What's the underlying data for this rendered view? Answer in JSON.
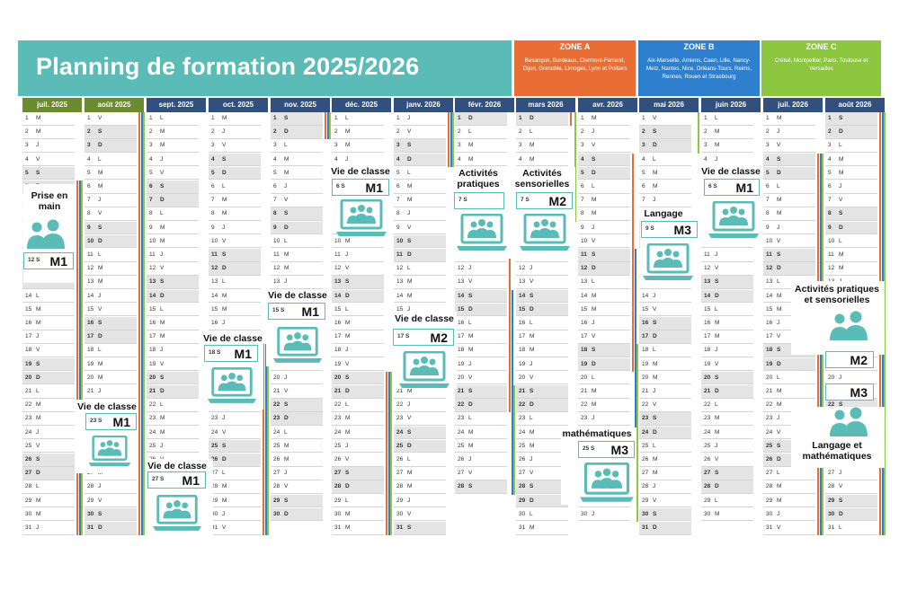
{
  "title": "Planning de formation 2025/2026",
  "zones": [
    {
      "name": "ZONE A",
      "cities": "Besançon, Bordeaux, Clermont-Ferrand, Dijon, Grenoble, Limoges, Lyon et Poitiers"
    },
    {
      "name": "ZONE B",
      "cities": "Aix-Marseille, Amiens, Caen, Lille, Nancy-Metz, Nantes, Nice, Orléans-Tours, Reims, Rennes, Rouen et Strasbourg"
    },
    {
      "name": "ZONE C",
      "cities": "Créteil, Montpellier, Paris, Toulouse et Versailles"
    }
  ],
  "months": [
    {
      "name": "juil. 2025",
      "start": 1,
      "days": 31
    },
    {
      "name": "août 2025",
      "start": 4,
      "days": 31
    },
    {
      "name": "sept. 2025",
      "start": 0,
      "days": 30
    },
    {
      "name": "oct. 2025",
      "start": 2,
      "days": 31
    },
    {
      "name": "nov. 2025",
      "start": 5,
      "days": 30
    },
    {
      "name": "déc. 2025",
      "start": 0,
      "days": 31
    },
    {
      "name": "janv. 2026",
      "start": 3,
      "days": 31
    },
    {
      "name": "févr. 2026",
      "start": 6,
      "days": 28
    },
    {
      "name": "mars 2026",
      "start": 6,
      "days": 31
    },
    {
      "name": "avr. 2026",
      "start": 2,
      "days": 30
    },
    {
      "name": "mai 2026",
      "start": 4,
      "days": 31
    },
    {
      "name": "juin 2026",
      "start": 0,
      "days": 30
    },
    {
      "name": "juil. 2026",
      "start": 2,
      "days": 31
    },
    {
      "name": "août 2026",
      "start": 5,
      "days": 31
    }
  ],
  "weekday_letters": [
    "L",
    "M",
    "M",
    "J",
    "V",
    "S",
    "D"
  ],
  "sessions": [
    {
      "label": "Prise en\nmain",
      "day": "12  S",
      "module": "M1"
    },
    {
      "label": "Vie de classe",
      "day": "23  S",
      "module": "M1"
    },
    {
      "label": "Vie de classe",
      "day": "27  S",
      "module": "M1"
    },
    {
      "label": "Vie de classe",
      "day": "18  S",
      "module": "M1"
    },
    {
      "label": "Vie de classe",
      "day": "15  S",
      "module": "M1"
    },
    {
      "label": "Vie de classe",
      "day": "6  S",
      "module": "M1"
    },
    {
      "label": "Vie de classe",
      "day": "17  S",
      "module": "M2"
    },
    {
      "label": "Activités\npratiques",
      "day": "7  S",
      "module": ""
    },
    {
      "label": "Activités\nsensorielles",
      "day": "7  S",
      "module": "M2"
    },
    {
      "label": "Langage",
      "day": "9  S",
      "module": "M3"
    },
    {
      "label": "mathématiques",
      "day": "25  S",
      "module": "M3"
    },
    {
      "label": "Vie de classe",
      "day": "6  S",
      "module": "M1"
    },
    {
      "label": "Activités pratiques\net sensorielles",
      "day": "",
      "module": "M2"
    },
    {
      "label": "Langage et\nmathématiques",
      "day": "",
      "module": "M3"
    }
  ],
  "colors": {
    "teal": "#5bbcb7",
    "zoneA": "#e86e35",
    "zoneB": "#2f7fcf",
    "zoneC": "#8dc63f"
  },
  "icons": [
    "laptop-group-icon",
    "people-group-icon"
  ]
}
